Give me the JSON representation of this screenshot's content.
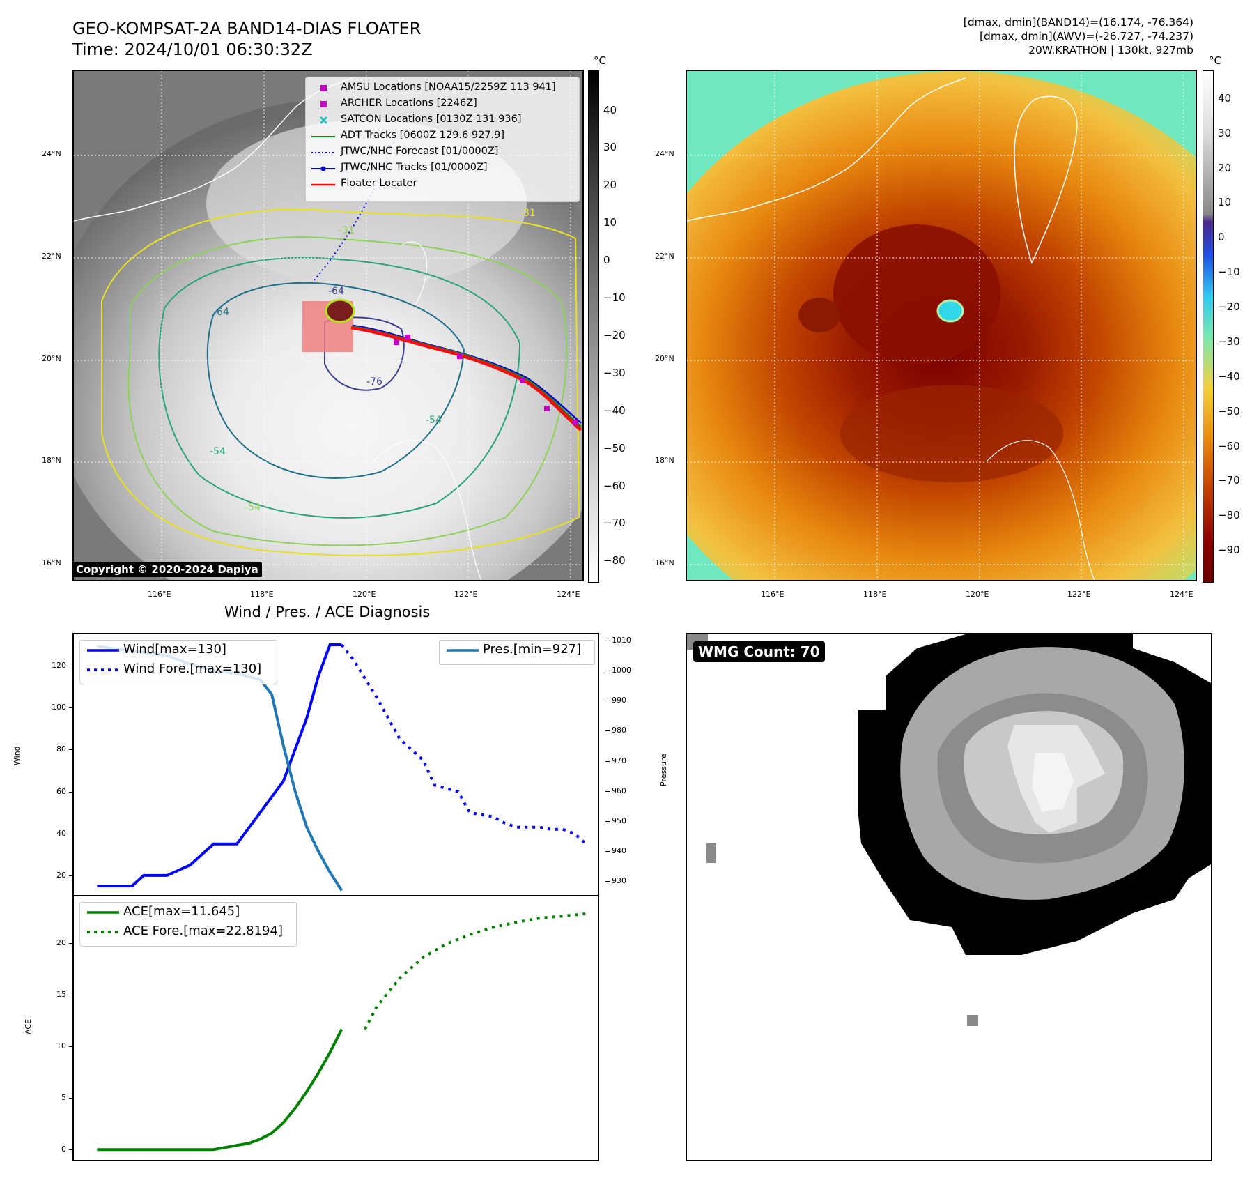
{
  "header": {
    "title_line1": "GEO-KOMPSAT-2A BAND14-DIAS FLOATER",
    "title_line2": "Time: 2024/10/01 06:30:32Z",
    "stats_line1": "[dmax, dmin](BAND14)=(16.174, -76.364)",
    "stats_line2": "[dmax, dmin](AWV)=(-26.727, -74.237)",
    "stats_line3": "20W.KRATHON | 130kt, 927mb"
  },
  "map_left": {
    "unit": "°C",
    "lat_ticks": [
      "24°N",
      "22°N",
      "20°N",
      "18°N",
      "16°N"
    ],
    "lon_ticks": [
      "116°E",
      "118°E",
      "120°E",
      "122°E",
      "124°E"
    ],
    "colorbar_ticks": [
      "40",
      "30",
      "20",
      "10",
      "0",
      "−10",
      "−20",
      "−30",
      "−40",
      "−50",
      "−60",
      "−70",
      "−80"
    ],
    "copyright": "Copyright © 2020-2024 Dapiya",
    "legend": [
      {
        "label": "AMSU Locations [NOAA15/2259Z 113 941]",
        "color": "#c000c0",
        "marker": "square"
      },
      {
        "label": "ARCHER Locations [2246Z]",
        "color": "#c000c0",
        "marker": "square"
      },
      {
        "label": "SATCON Locations [0130Z 131 936]",
        "color": "#17b8c0",
        "marker": "x"
      },
      {
        "label": "ADT Tracks [0600Z 129.6 927.9]",
        "color": "#118811",
        "marker": "line"
      },
      {
        "label": "JTWC/NHC Forecast [01/0000Z]",
        "color": "#0000dd",
        "marker": "dotted"
      },
      {
        "label": "JTWC/NHC Tracks [01/0000Z]",
        "color": "#0000dd",
        "marker": "dotline"
      },
      {
        "label": "Floater Locater",
        "color": "#ee1111",
        "marker": "line"
      }
    ],
    "contour_labels": [
      "-31",
      "-31",
      "-64",
      "-76",
      "-54",
      "-54",
      "-54",
      "-64"
    ]
  },
  "map_right": {
    "unit": "°C",
    "lat_ticks": [
      "24°N",
      "22°N",
      "20°N",
      "18°N",
      "16°N"
    ],
    "lon_ticks": [
      "116°E",
      "118°E",
      "120°E",
      "122°E",
      "124°E"
    ],
    "colorbar_ticks": [
      "40",
      "30",
      "20",
      "10",
      "0",
      "−10",
      "−20",
      "−30",
      "−40",
      "−50",
      "−60",
      "−70",
      "−80",
      "−90"
    ]
  },
  "diag": {
    "title": "Wind / Pres. / ACE Diagnosis",
    "wind_ylabel": "Wind",
    "pres_ylabel": "Pressure",
    "ace_ylabel": "ACE",
    "wind_legend": [
      "Wind[max=130]",
      "Wind Fore.[max=130]"
    ],
    "pres_legend": [
      "Pres.[min=927]"
    ],
    "ace_legend": [
      "ACE[max=11.645]",
      "ACE Fore.[max=22.8194]"
    ],
    "colors": {
      "wind": "#0000ff",
      "pres": "#1f77b4",
      "ace": "#008000"
    }
  },
  "chart_data": [
    {
      "type": "line",
      "title": "Wind / Pres. / ACE Diagnosis",
      "ylabel": "Wind",
      "ylim": [
        10,
        135
      ],
      "xlim": [
        -2,
        43
      ],
      "series": [
        {
          "name": "Wind[max=130]",
          "style": "solid",
          "x": [
            0,
            3,
            4,
            6,
            8,
            10,
            12,
            14,
            16,
            18,
            19,
            20,
            21
          ],
          "values": [
            15,
            15,
            20,
            20,
            25,
            35,
            35,
            50,
            65,
            95,
            115,
            130,
            130
          ]
        },
        {
          "name": "Wind Fore.[max=130]",
          "style": "dotted",
          "x": [
            21,
            22,
            24,
            26,
            28,
            29,
            31,
            32,
            34,
            35,
            36,
            37,
            38,
            39,
            40,
            41,
            42
          ],
          "values": [
            130,
            123,
            105,
            85,
            75,
            63,
            60,
            50,
            48,
            45,
            43,
            43,
            43,
            42,
            42,
            40,
            35
          ]
        },
        {
          "name": "Pres.[min=927]",
          "style": "solid",
          "axis": "right",
          "x": [
            0,
            2,
            4,
            6,
            8,
            10,
            12,
            14,
            15,
            16,
            17,
            18,
            19,
            20,
            21
          ],
          "values": [
            1008,
            1007,
            1006,
            1005,
            1002,
            1000,
            999,
            997,
            992,
            975,
            960,
            948,
            940,
            933,
            927
          ]
        }
      ],
      "y2label": "Pressure",
      "y2lim": [
        925,
        1012
      ],
      "yticks": [
        20,
        40,
        60,
        80,
        100,
        120
      ],
      "y2ticks": [
        930,
        940,
        950,
        960,
        970,
        980,
        990,
        1000,
        1010
      ]
    },
    {
      "type": "line",
      "ylabel": "ACE",
      "ylim": [
        -1,
        24.5
      ],
      "xlim": [
        -2,
        43
      ],
      "series": [
        {
          "name": "ACE[max=11.645]",
          "style": "solid",
          "x": [
            0,
            2,
            4,
            6,
            8,
            10,
            11,
            12,
            13,
            14,
            15,
            16,
            17,
            18,
            19,
            20,
            21,
            22,
            23
          ],
          "values": [
            0,
            0,
            0,
            0,
            0,
            0,
            0.2,
            0.4,
            0.6,
            1.0,
            1.6,
            2.6,
            4.0,
            5.6,
            7.4,
            9.4,
            11.645,
            null,
            null
          ]
        },
        {
          "name": "ACE Fore.[max=22.8194]",
          "style": "dotted",
          "x": [
            23,
            24,
            26,
            28,
            30,
            32,
            34,
            36,
            38,
            40,
            42
          ],
          "values": [
            11.645,
            13.8,
            16.6,
            18.6,
            19.9,
            20.8,
            21.5,
            22.0,
            22.4,
            22.6,
            22.8194
          ]
        }
      ],
      "yticks": [
        0,
        5,
        10,
        15,
        20
      ]
    }
  ],
  "wmg": {
    "label": "WMG Count: 70"
  }
}
